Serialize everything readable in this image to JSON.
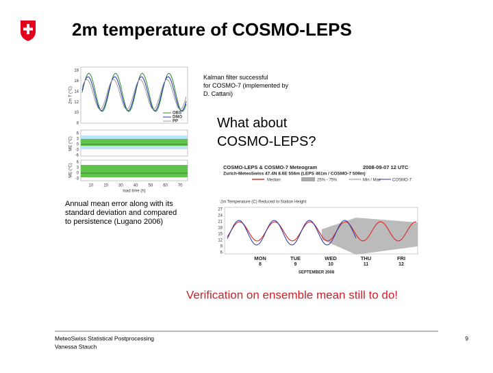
{
  "header": {
    "title": "2m temperature of COSMO-LEPS"
  },
  "notes": {
    "kalman": "Kalman filter successful for COSMO-7 (implemented by D. Cattani)",
    "question": "What about COSMO-LEPS?",
    "left_caption": "Annual mean error along with its standard deviation and compared to persistence (Lugano 2006)",
    "todo": "Verification on ensemble mean still to do!"
  },
  "left_figure": {
    "temp_ticks": [
      "18",
      "16",
      "14",
      "12",
      "10",
      "8"
    ],
    "temp_axis": "2m T (°C)",
    "legend": [
      "OBS",
      "DMO",
      "PP"
    ],
    "me_ticks_1": [
      "6",
      "3",
      "0",
      "-3",
      "-6"
    ],
    "me_ticks_2": [
      "6",
      "3",
      "0",
      "-3"
    ],
    "me_axis_1": "ME (°C)",
    "me_axis_2": "ME (°C)",
    "x_ticks": [
      "10",
      "20",
      "30",
      "40",
      "50",
      "60",
      "70"
    ],
    "x_label": "load time (h)"
  },
  "right_figure": {
    "title": "COSMO-LEPS & COSMO-7 Meteogram",
    "run": "2008-09-07 12 UTC",
    "station": "Zurich-MeteoSwiss  47.4N  8.6E  556m (LEPS 461m / COSMO-7 509m)",
    "legend": [
      "Median",
      "25% - 75%",
      "Min / Max",
      "COSMO-7"
    ],
    "panel_title": "2m Temperature (C) Reduced to Station Height",
    "y_ticks": [
      "27",
      "24",
      "21",
      "18",
      "15",
      "12",
      "9",
      "6"
    ],
    "days": [
      "MON",
      "TUE",
      "WED",
      "THU",
      "FRI"
    ],
    "dates": [
      "8",
      "9",
      "10",
      "11",
      "12"
    ],
    "month": "SEPTEMBER 2008"
  },
  "footer": {
    "line1": "MeteoSwiss Statistical Postprocessing",
    "line2": "Vanessa Stauch",
    "page": "9"
  }
}
